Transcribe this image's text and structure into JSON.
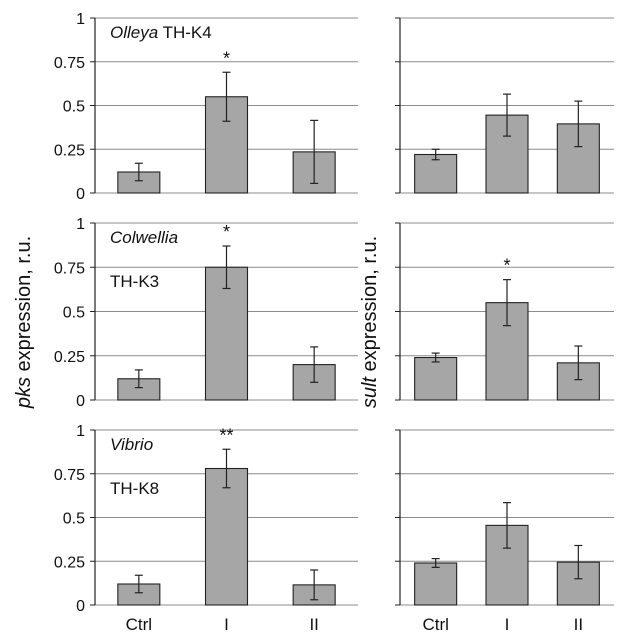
{
  "chart_data": {
    "type": "bar",
    "categories": [
      "Ctrl",
      "I",
      "II"
    ],
    "ylim": [
      0,
      1
    ],
    "yticks": [
      "0",
      "0.25",
      "0.5",
      "0.75",
      "1"
    ],
    "bar_color": "#a6a6a6",
    "grid": true,
    "ylabel_left": {
      "italic": "pks",
      "rest": " expression, r.u."
    },
    "ylabel_right": {
      "italic": "sult",
      "rest": " expression, r.u."
    },
    "panels": [
      {
        "row": 0,
        "col": 0,
        "label_italic": "Olleya",
        "label_suffix": " TH-K4",
        "label_line2": "",
        "values": [
          0.12,
          0.55,
          0.235
        ],
        "errors": [
          0.05,
          0.14,
          0.18
        ],
        "sig": [
          "",
          "*",
          ""
        ]
      },
      {
        "row": 0,
        "col": 1,
        "label_italic": "",
        "label_suffix": "",
        "label_line2": "",
        "values": [
          0.22,
          0.445,
          0.395
        ],
        "errors": [
          0.03,
          0.12,
          0.13
        ],
        "sig": [
          "",
          "",
          ""
        ]
      },
      {
        "row": 1,
        "col": 0,
        "label_italic": "Colwellia",
        "label_suffix": "",
        "label_line2": "TH-K3",
        "values": [
          0.12,
          0.75,
          0.2
        ],
        "errors": [
          0.05,
          0.12,
          0.1
        ],
        "sig": [
          "",
          "*",
          ""
        ]
      },
      {
        "row": 1,
        "col": 1,
        "label_italic": "",
        "label_suffix": "",
        "label_line2": "",
        "values": [
          0.24,
          0.55,
          0.21
        ],
        "errors": [
          0.025,
          0.13,
          0.095
        ],
        "sig": [
          "",
          "*",
          ""
        ]
      },
      {
        "row": 2,
        "col": 0,
        "label_italic": "Vibrio",
        "label_suffix": "",
        "label_line2": "TH-K8",
        "values": [
          0.12,
          0.78,
          0.115
        ],
        "errors": [
          0.05,
          0.11,
          0.085
        ],
        "sig": [
          "",
          "**",
          ""
        ]
      },
      {
        "row": 2,
        "col": 1,
        "label_italic": "",
        "label_suffix": "",
        "label_line2": "",
        "values": [
          0.24,
          0.455,
          0.245
        ],
        "errors": [
          0.025,
          0.13,
          0.095
        ],
        "sig": [
          "",
          "",
          ""
        ]
      }
    ]
  }
}
